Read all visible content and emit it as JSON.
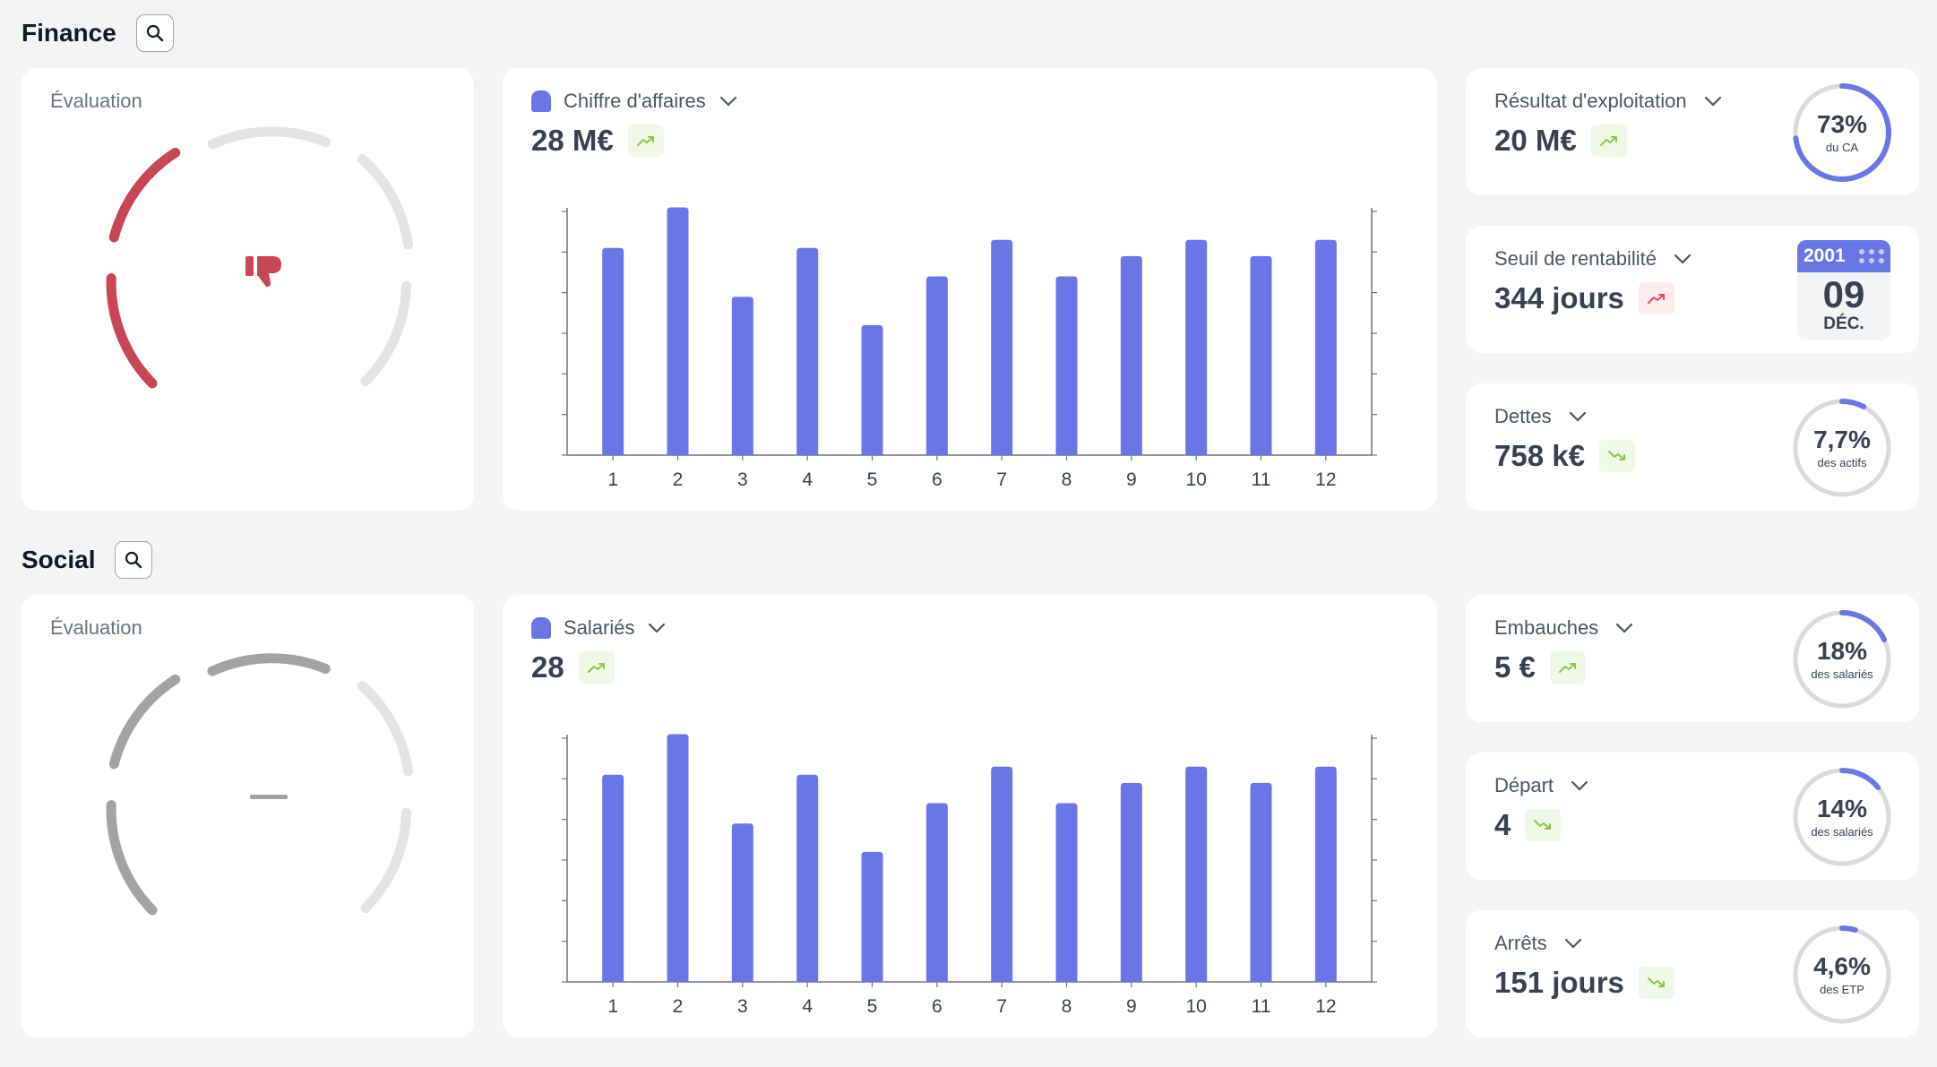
{
  "sections": {
    "finance": {
      "title": "Finance",
      "evaluation": {
        "label": "Évaluation",
        "state": "negative",
        "icon": "thumbs-down-icon",
        "color": "#c74656"
      },
      "chart": {
        "label": "Chiffre d'affaires",
        "value": "28 M€",
        "trend": "up",
        "color": "#6b76e6"
      },
      "kpis": [
        {
          "label": "Résultat d'exploitation",
          "value": "20 M€",
          "trend": "up",
          "trend_color": "green",
          "pct": "73%",
          "pct_value": 73,
          "sub": "du CA"
        },
        {
          "label": "Seuil de rentabilité",
          "value": "344 jours",
          "trend": "up",
          "trend_color": "red",
          "calendar": {
            "year": "2001",
            "day": "09",
            "month": "DÉC."
          }
        },
        {
          "label": "Dettes",
          "value": "758 k€",
          "trend": "down",
          "trend_color": "green",
          "pct": "7,7%",
          "pct_value": 7.7,
          "sub": "des actifs"
        }
      ]
    },
    "social": {
      "title": "Social",
      "evaluation": {
        "label": "Évaluation",
        "state": "neutral",
        "icon": "dash-icon",
        "color": "#a3a3a3"
      },
      "chart": {
        "label": "Salariés",
        "value": "28",
        "trend": "up",
        "color": "#6b76e6"
      },
      "kpis": [
        {
          "label": "Embauches",
          "value": "5 €",
          "trend": "up",
          "trend_color": "green",
          "pct": "18%",
          "pct_value": 18,
          "sub": "des salariés"
        },
        {
          "label": "Départ",
          "value": "4",
          "trend": "down",
          "trend_color": "green",
          "pct": "14%",
          "pct_value": 14,
          "sub": "des salariés"
        },
        {
          "label": "Arrêts",
          "value": "151 jours",
          "trend": "down",
          "trend_color": "green",
          "pct": "4,6%",
          "pct_value": 4.6,
          "sub": "des ETP"
        }
      ]
    }
  },
  "chart_data": [
    {
      "type": "bar",
      "categories": [
        "1",
        "2",
        "3",
        "4",
        "5",
        "6",
        "7",
        "8",
        "9",
        "10",
        "11",
        "12"
      ],
      "values": [
        5.1,
        6.1,
        3.9,
        5.1,
        3.2,
        4.4,
        5.3,
        4.4,
        4.9,
        5.3,
        4.9,
        5.3
      ],
      "series": [
        {
          "name": "Chiffre d'affaires",
          "values": [
            5.1,
            6.1,
            3.9,
            5.1,
            3.2,
            4.4,
            5.3,
            4.4,
            4.9,
            5.3,
            4.9,
            5.3
          ]
        }
      ],
      "ylim": [
        0,
        6
      ],
      "grid": false
    },
    {
      "type": "bar",
      "categories": [
        "1",
        "2",
        "3",
        "4",
        "5",
        "6",
        "7",
        "8",
        "9",
        "10",
        "11",
        "12"
      ],
      "values": [
        5.1,
        6.1,
        3.9,
        5.1,
        3.2,
        4.4,
        5.3,
        4.4,
        4.9,
        5.3,
        4.9,
        5.3
      ],
      "series": [
        {
          "name": "Salariés",
          "values": [
            5.1,
            6.1,
            3.9,
            5.1,
            3.2,
            4.4,
            5.3,
            4.4,
            4.9,
            5.3,
            4.9,
            5.3
          ]
        }
      ],
      "ylim": [
        0,
        6
      ],
      "grid": false
    }
  ],
  "colors": {
    "accent": "#6b76e6",
    "negative": "#c74656",
    "trend_green": "#8bc34a",
    "trend_red": "#e04a5a",
    "ring_track": "#d9d9de"
  }
}
